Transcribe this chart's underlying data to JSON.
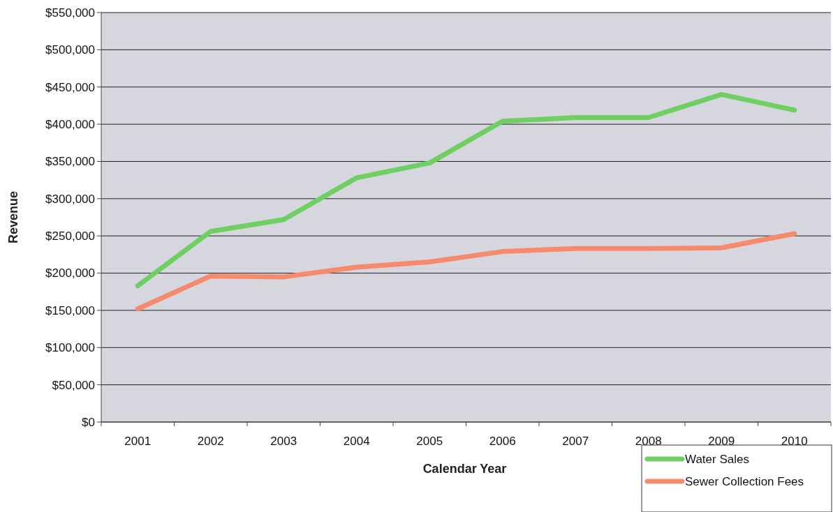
{
  "chart_data": {
    "type": "line",
    "xlabel": "Calendar Year",
    "ylabel": "Revenue",
    "categories": [
      "2001",
      "2002",
      "2003",
      "2004",
      "2005",
      "2006",
      "2007",
      "2008",
      "2009",
      "2010"
    ],
    "series": [
      {
        "name": "Water Sales",
        "color": "#6fcf63",
        "values": [
          183000,
          256000,
          272000,
          328000,
          348000,
          404000,
          409000,
          409000,
          440000,
          419000
        ]
      },
      {
        "name": "Sewer Collection Fees",
        "color": "#f58b6c",
        "values": [
          152000,
          196000,
          195000,
          208000,
          215000,
          229000,
          233000,
          233000,
          234000,
          253000
        ]
      }
    ],
    "ylim": [
      0,
      550000
    ],
    "yticks": [
      {
        "value": 0,
        "label": "$0"
      },
      {
        "value": 50000,
        "label": "$50,000"
      },
      {
        "value": 100000,
        "label": "$100,000"
      },
      {
        "value": 150000,
        "label": "$150,000"
      },
      {
        "value": 200000,
        "label": "$200,000"
      },
      {
        "value": 250000,
        "label": "$250,000"
      },
      {
        "value": 300000,
        "label": "$300,000"
      },
      {
        "value": 350000,
        "label": "$350,000"
      },
      {
        "value": 400000,
        "label": "$400,000"
      },
      {
        "value": 450000,
        "label": "$450,000"
      },
      {
        "value": 500000,
        "label": "$500,000"
      },
      {
        "value": 550000,
        "label": "$550,000"
      }
    ],
    "grid": "y",
    "legend": "bottom right",
    "marker": "none",
    "line_style": "solid"
  }
}
